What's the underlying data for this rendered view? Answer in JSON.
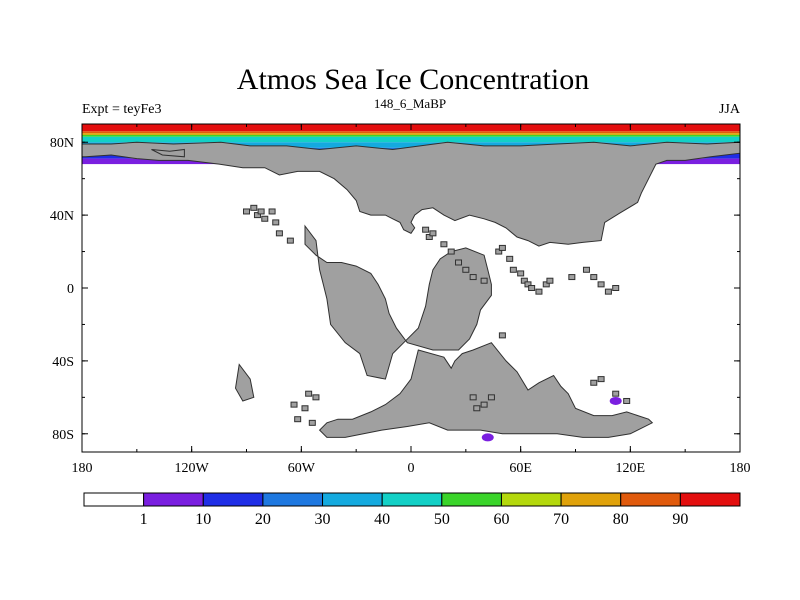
{
  "title": "Atmos Sea Ice Concentration",
  "left_label": "Expt = teyFe3",
  "center_label": "148_6_MaBP",
  "right_label": "JJA",
  "lat_labels": [
    "80N",
    "40N",
    "0",
    "40S",
    "80S"
  ],
  "lat_values": [
    80,
    40,
    0,
    -40,
    -80
  ],
  "lon_labels": [
    "180",
    "120W",
    "60W",
    "0",
    "60E",
    "120E",
    "180"
  ],
  "lon_values": [
    -180,
    -120,
    -60,
    0,
    60,
    120,
    180
  ],
  "colorbar": {
    "labels": [
      "1",
      "10",
      "20",
      "30",
      "40",
      "50",
      "60",
      "70",
      "80",
      "90"
    ],
    "colors": [
      "#ffffff",
      "#7a1fe0",
      "#1f2ee6",
      "#1e78e0",
      "#14aadf",
      "#13d0c6",
      "#3ad42a",
      "#b4d80c",
      "#e0a20a",
      "#e05a0c",
      "#e30e0e"
    ]
  },
  "colors": {
    "land": "#a0a0a0",
    "land_outline": "#303030",
    "ocean": "#ffffff"
  },
  "chart_data": {
    "type": "heatmap",
    "title": "Atmos Sea Ice Concentration",
    "variable": "sea ice concentration",
    "experiment": "teyFe3",
    "period": "148_6_MaBP",
    "season": "JJA",
    "lon_range": [
      -180,
      180
    ],
    "lat_range": [
      -90,
      90
    ],
    "levels": [
      1,
      10,
      20,
      30,
      40,
      50,
      60,
      70,
      80,
      90
    ],
    "ice_bands": [
      {
        "value": 95,
        "lat_range": [
          86,
          90
        ]
      },
      {
        "value": 85,
        "lat_range": [
          85,
          86
        ]
      },
      {
        "value": 75,
        "lat_range": [
          84,
          85
        ]
      },
      {
        "value": 55,
        "lat_range": [
          83,
          84
        ]
      },
      {
        "value": 45,
        "lat_range": [
          80,
          83
        ]
      },
      {
        "value": 35,
        "lat_range": [
          77,
          80
        ]
      },
      {
        "value": 25,
        "lat_range": [
          74,
          77
        ]
      },
      {
        "value": 15,
        "lat_range": [
          71,
          74
        ]
      },
      {
        "value": 5,
        "lat_range": [
          68,
          71
        ]
      }
    ],
    "land_polygons": [
      [
        [
          -164,
          79
        ],
        [
          -150,
          80
        ],
        [
          -130,
          79
        ],
        [
          -104,
          80
        ],
        [
          -88,
          78
        ],
        [
          -75,
          78
        ],
        [
          -68,
          78
        ],
        [
          -50,
          76
        ],
        [
          -30,
          78
        ],
        [
          -10,
          76
        ],
        [
          5,
          78
        ],
        [
          20,
          80
        ],
        [
          40,
          78
        ],
        [
          60,
          78
        ],
        [
          80,
          79
        ],
        [
          100,
          80
        ],
        [
          120,
          78
        ],
        [
          140,
          80
        ],
        [
          162,
          79
        ],
        [
          180,
          80
        ],
        [
          180,
          74
        ],
        [
          164,
          72
        ],
        [
          150,
          70
        ],
        [
          140,
          70
        ],
        [
          134,
          68
        ],
        [
          130,
          60
        ],
        [
          126,
          52
        ],
        [
          124,
          47
        ],
        [
          114,
          41
        ],
        [
          106,
          36
        ],
        [
          104,
          26
        ],
        [
          94,
          25
        ],
        [
          86,
          24
        ],
        [
          76,
          25
        ],
        [
          70,
          23
        ],
        [
          64,
          26
        ],
        [
          58,
          28
        ],
        [
          52,
          33
        ],
        [
          46,
          36
        ],
        [
          40,
          38
        ],
        [
          32,
          40
        ],
        [
          24,
          37
        ],
        [
          18,
          40
        ],
        [
          12,
          44
        ],
        [
          6,
          43
        ],
        [
          2,
          40
        ],
        [
          0,
          36
        ],
        [
          2,
          33
        ],
        [
          0,
          30
        ],
        [
          -4,
          32
        ],
        [
          -6,
          36
        ],
        [
          -10,
          38
        ],
        [
          -14,
          40
        ],
        [
          -22,
          40
        ],
        [
          -28,
          42
        ],
        [
          -30,
          48
        ],
        [
          -35,
          54
        ],
        [
          -42,
          60
        ],
        [
          -50,
          64
        ],
        [
          -62,
          64
        ],
        [
          -72,
          62
        ],
        [
          -80,
          66
        ],
        [
          -92,
          66
        ],
        [
          -105,
          68
        ],
        [
          -122,
          70
        ],
        [
          -138,
          70
        ],
        [
          -150,
          71
        ],
        [
          -164,
          73
        ],
        [
          -178,
          72
        ],
        [
          -180,
          72
        ],
        [
          -180,
          79
        ]
      ],
      [
        [
          -58,
          34
        ],
        [
          -52,
          26
        ],
        [
          -50,
          10
        ],
        [
          -48,
          2
        ],
        [
          -46,
          -6
        ],
        [
          -44,
          -20
        ],
        [
          -36,
          -30
        ],
        [
          -28,
          -36
        ],
        [
          -24,
          -48
        ],
        [
          -14,
          -50
        ],
        [
          -10,
          -36
        ],
        [
          -4,
          -30
        ],
        [
          4,
          -22
        ],
        [
          8,
          -10
        ],
        [
          10,
          2
        ],
        [
          12,
          10
        ],
        [
          16,
          16
        ],
        [
          22,
          20
        ],
        [
          30,
          22
        ],
        [
          40,
          18
        ],
        [
          42,
          10
        ],
        [
          44,
          2
        ],
        [
          44,
          -4
        ],
        [
          38,
          -12
        ],
        [
          36,
          -20
        ],
        [
          32,
          -28
        ],
        [
          26,
          -34
        ],
        [
          12,
          -34
        ],
        [
          -2,
          -30
        ],
        [
          -8,
          -22
        ],
        [
          -12,
          -14
        ],
        [
          -14,
          -6
        ],
        [
          -18,
          2
        ],
        [
          -22,
          8
        ],
        [
          -30,
          12
        ],
        [
          -38,
          14
        ],
        [
          -46,
          14
        ],
        [
          -52,
          18
        ],
        [
          -58,
          24
        ]
      ],
      [
        [
          4,
          -34
        ],
        [
          18,
          -38
        ],
        [
          22,
          -44
        ],
        [
          24,
          -40
        ],
        [
          28,
          -36
        ],
        [
          34,
          -34
        ],
        [
          44,
          -30
        ],
        [
          52,
          -40
        ],
        [
          58,
          -46
        ],
        [
          64,
          -56
        ],
        [
          70,
          -52
        ],
        [
          78,
          -48
        ],
        [
          82,
          -54
        ],
        [
          86,
          -58
        ],
        [
          90,
          -66
        ],
        [
          100,
          -70
        ],
        [
          110,
          -70
        ],
        [
          118,
          -68
        ],
        [
          130,
          -72
        ],
        [
          132,
          -74
        ],
        [
          120,
          -80
        ],
        [
          108,
          -82
        ],
        [
          94,
          -82
        ],
        [
          80,
          -80
        ],
        [
          70,
          -80
        ],
        [
          60,
          -80
        ],
        [
          50,
          -80
        ],
        [
          38,
          -78
        ],
        [
          30,
          -78
        ],
        [
          20,
          -78
        ],
        [
          10,
          -74
        ],
        [
          -2,
          -76
        ],
        [
          -16,
          -78
        ],
        [
          -26,
          -80
        ],
        [
          -36,
          -82
        ],
        [
          -46,
          -82
        ],
        [
          -50,
          -78
        ],
        [
          -46,
          -74
        ],
        [
          -40,
          -72
        ],
        [
          -32,
          -72
        ],
        [
          -22,
          -68
        ],
        [
          -14,
          -64
        ],
        [
          -6,
          -58
        ],
        [
          0,
          -50
        ],
        [
          2,
          -42
        ]
      ],
      [
        [
          -142,
          76
        ],
        [
          -132,
          75
        ],
        [
          -124,
          76
        ],
        [
          -124,
          72
        ],
        [
          -136,
          73
        ]
      ],
      [
        [
          -94,
          -42
        ],
        [
          -96,
          -55
        ],
        [
          -92,
          -62
        ],
        [
          -86,
          -60
        ],
        [
          -88,
          -50
        ]
      ]
    ],
    "islands": [
      [
        -90,
        42
      ],
      [
        -86,
        44
      ],
      [
        -84,
        40
      ],
      [
        -82,
        42
      ],
      [
        -80,
        38
      ],
      [
        -76,
        42
      ],
      [
        -74,
        36
      ],
      [
        -72,
        30
      ],
      [
        -66,
        26
      ],
      [
        8,
        32
      ],
      [
        10,
        28
      ],
      [
        12,
        30
      ],
      [
        18,
        24
      ],
      [
        22,
        20
      ],
      [
        26,
        14
      ],
      [
        30,
        10
      ],
      [
        34,
        6
      ],
      [
        40,
        4
      ],
      [
        48,
        20
      ],
      [
        50,
        22
      ],
      [
        54,
        16
      ],
      [
        56,
        10
      ],
      [
        60,
        8
      ],
      [
        62,
        4
      ],
      [
        64,
        2
      ],
      [
        66,
        0
      ],
      [
        70,
        -2
      ],
      [
        74,
        2
      ],
      [
        76,
        4
      ],
      [
        88,
        6
      ],
      [
        96,
        10
      ],
      [
        100,
        6
      ],
      [
        104,
        2
      ],
      [
        108,
        -2
      ],
      [
        112,
        0
      ],
      [
        -64,
        -64
      ],
      [
        -62,
        -72
      ],
      [
        -58,
        -66
      ],
      [
        -54,
        -74
      ],
      [
        -56,
        -58
      ],
      [
        -52,
        -60
      ],
      [
        50,
        -26
      ],
      [
        44,
        -60
      ],
      [
        40,
        -64
      ],
      [
        36,
        -66
      ],
      [
        34,
        -60
      ],
      [
        104,
        -50
      ],
      [
        100,
        -52
      ],
      [
        112,
        -58
      ],
      [
        118,
        -62
      ]
    ],
    "ice_patches": [
      {
        "value": 5,
        "lon": 112,
        "lat": -62
      },
      {
        "value": 5,
        "lon": 42,
        "lat": -82
      }
    ]
  }
}
